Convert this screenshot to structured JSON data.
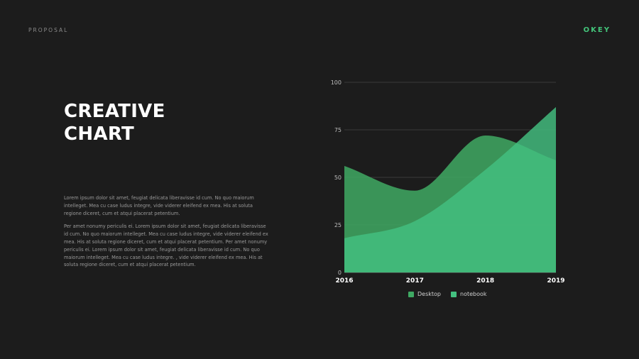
{
  "header": {
    "section_label": "PROPOSAL",
    "brand": "OKEY"
  },
  "title": {
    "line1": "CREATIVE",
    "line2": "CHART"
  },
  "body": {
    "paragraph1": "Lorem ipsum dolor sit amet, feugiat delicata liberavisse id cum. No quo maiorum intelleget. Mea cu case ludus integre, vide viderer eleifend ex mea. His at soluta regione diceret, cum et atqui placerat petentium.",
    "paragraph2": "Per amet nonumy periculis ei. Lorem ipsum dolor sit amet, feugiat delicata liberavisse id cum. No quo maiorum intelleget. Mea cu case ludus integre, vide viderer eleifend ex mea. His at soluta regione diceret, cum et atqui placerat petentium. Per amet nonumy periculis ei. Lorem ipsum dolor sit amet, feugiat delicata liberavisse id cum. No quo maiorum intelleget. Mea cu case ludus integre. , vide viderer eleifend ex mea. His at soluta regione diceret, cum et atqui placerat petentium."
  },
  "colors": {
    "accent": "#43c47a",
    "desktop": "#3fa963",
    "notebook": "#43c080"
  },
  "chart_data": {
    "type": "area",
    "title": "",
    "xlabel": "",
    "ylabel": "",
    "categories": [
      "2016",
      "2017",
      "2018",
      "2019"
    ],
    "ylim": [
      0,
      100
    ],
    "yticks": [
      0,
      25,
      50,
      75,
      100
    ],
    "grid": true,
    "legend_position": "bottom",
    "series": [
      {
        "name": "Desktop",
        "color": "#3fa963",
        "values": [
          56,
          43,
          72,
          59
        ]
      },
      {
        "name": "notebook",
        "color": "#43c080",
        "values": [
          18,
          27,
          54,
          87
        ]
      }
    ]
  }
}
